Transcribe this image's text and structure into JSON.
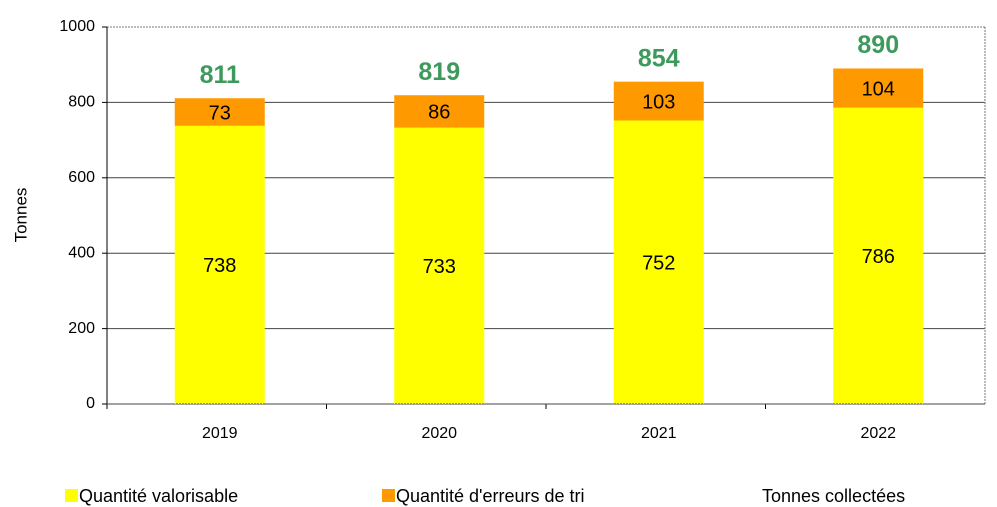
{
  "chart_data": {
    "type": "bar",
    "stacked": true,
    "y_label": "Tonnes",
    "categories": [
      "2019",
      "2020",
      "2021",
      "2022"
    ],
    "series": [
      {
        "name": "Quantité valorisable",
        "color": "#ffff00",
        "values": [
          738,
          733,
          752,
          786
        ]
      },
      {
        "name": "Quantité d'erreurs de tri",
        "color": "#ff9900",
        "values": [
          73,
          86,
          103,
          104
        ]
      }
    ],
    "totals": {
      "name": "Tonnes collectées",
      "color": "#3d9a5c",
      "values": [
        811,
        819,
        854,
        890
      ]
    },
    "ylim": [
      0,
      1000
    ],
    "yticks": [
      0,
      200,
      400,
      600,
      800,
      1000
    ],
    "grid": true
  }
}
